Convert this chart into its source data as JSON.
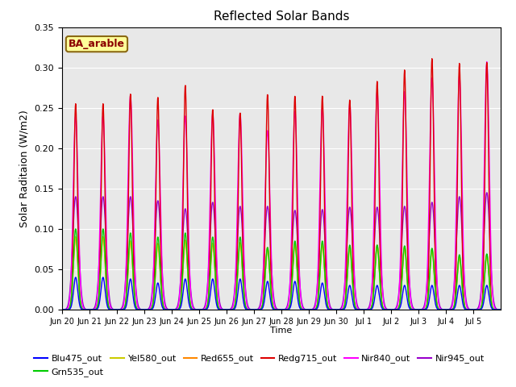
{
  "title": "Reflected Solar Bands",
  "xlabel": "Time",
  "ylabel": "Solar Raditaion (W/m2)",
  "ylim": [
    0.0,
    0.35
  ],
  "background_color": "#e8e8e8",
  "annotation_text": "BA_arable",
  "annotation_bg": "#ffff99",
  "annotation_border": "#8B6914",
  "annotation_text_color": "#8B0000",
  "series": [
    {
      "name": "Blu475_out",
      "color": "#0000ff"
    },
    {
      "name": "Grn535_out",
      "color": "#00cc00"
    },
    {
      "name": "Yel580_out",
      "color": "#cccc00"
    },
    {
      "name": "Red655_out",
      "color": "#ff8800"
    },
    {
      "name": "Redg715_out",
      "color": "#dd0000"
    },
    {
      "name": "Nir840_out",
      "color": "#ff00ff"
    },
    {
      "name": "Nir945_out",
      "color": "#9900cc"
    }
  ],
  "n_days": 16,
  "samples_per_day": 96,
  "day_peaks_redg715": [
    0.255,
    0.255,
    0.267,
    0.263,
    0.278,
    0.248,
    0.244,
    0.267,
    0.265,
    0.265,
    0.26,
    0.283,
    0.297,
    0.311,
    0.305,
    0.306
  ],
  "day_peaks_nir840": [
    0.24,
    0.24,
    0.265,
    0.235,
    0.24,
    0.243,
    0.243,
    0.222,
    0.246,
    0.25,
    0.255,
    0.27,
    0.27,
    0.287,
    0.29,
    0.307
  ],
  "day_peaks_nir945": [
    0.14,
    0.14,
    0.14,
    0.135,
    0.125,
    0.133,
    0.128,
    0.128,
    0.123,
    0.124,
    0.127,
    0.127,
    0.128,
    0.133,
    0.14,
    0.145
  ],
  "day_peaks_blu": [
    0.04,
    0.04,
    0.038,
    0.033,
    0.038,
    0.038,
    0.038,
    0.035,
    0.035,
    0.033,
    0.03,
    0.03,
    0.03,
    0.03,
    0.03,
    0.03
  ],
  "day_peaks_grn": [
    0.1,
    0.1,
    0.095,
    0.09,
    0.095,
    0.09,
    0.09,
    0.077,
    0.085,
    0.085,
    0.08,
    0.08,
    0.079,
    0.076,
    0.068,
    0.069
  ],
  "day_peaks_yel": [
    0.09,
    0.09,
    0.085,
    0.08,
    0.085,
    0.082,
    0.082,
    0.075,
    0.08,
    0.08,
    0.075,
    0.078,
    0.076,
    0.073,
    0.064,
    0.066
  ],
  "day_peaks_red": [
    0.09,
    0.09,
    0.085,
    0.082,
    0.086,
    0.082,
    0.083,
    0.077,
    0.082,
    0.082,
    0.078,
    0.08,
    0.078,
    0.075,
    0.066,
    0.068
  ],
  "sigma_redg": 0.065,
  "sigma_nir840": 0.09,
  "sigma_nir945": 0.11,
  "sigma_blu": 0.075,
  "sigma_grn": 0.08,
  "sigma_yel": 0.08,
  "sigma_red": 0.08,
  "tick_labels": [
    "Jun 20",
    "Jun 21",
    "Jun 22",
    "Jun 23",
    "Jun 24",
    "Jun 25",
    "Jun 26",
    "Jun 27",
    "Jun 28",
    "Jun 29",
    "Jun 30",
    "Jul 1",
    "Jul 2",
    "Jul 3",
    "Jul 4",
    "Jul 5"
  ],
  "figsize": [
    6.4,
    4.8
  ],
  "dpi": 100
}
